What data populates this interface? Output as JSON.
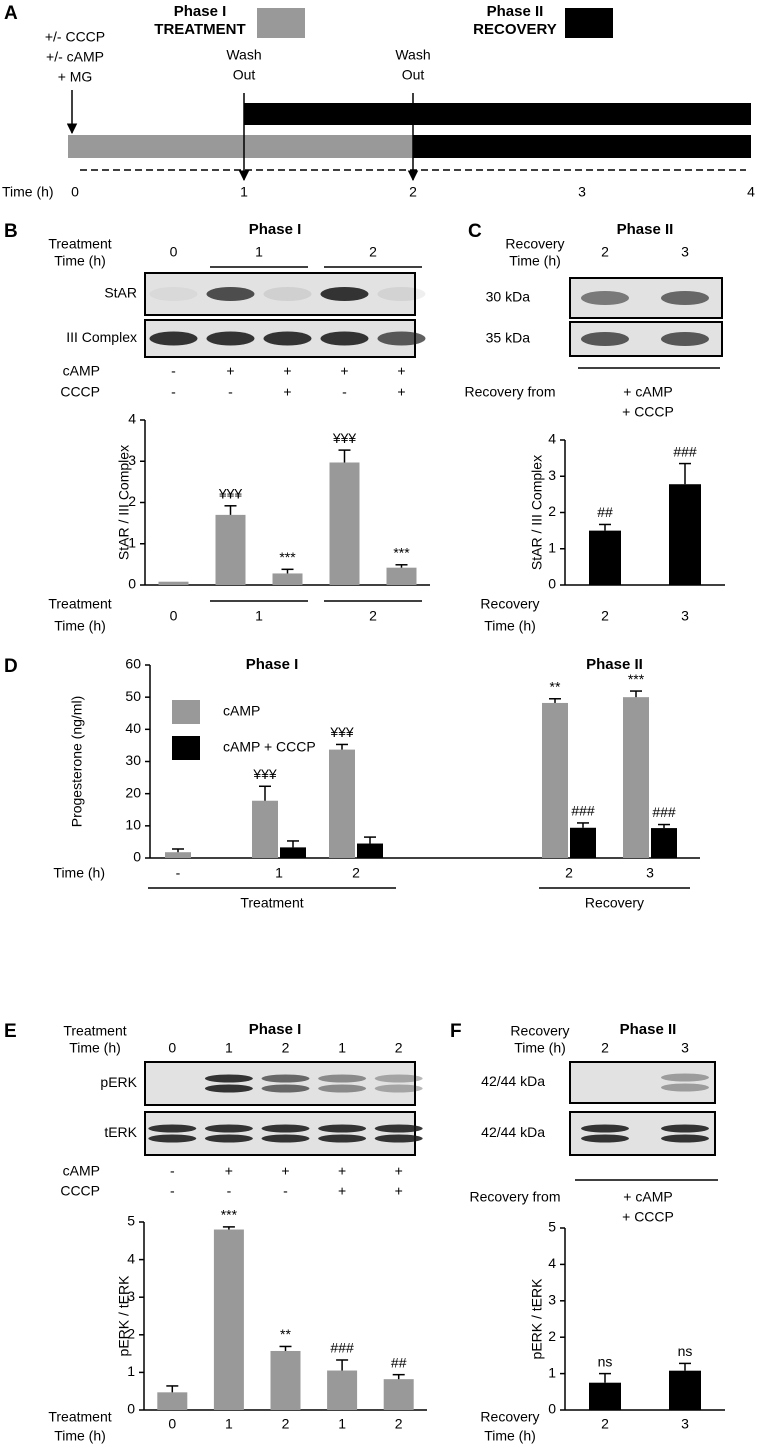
{
  "panel_labels": [
    "A",
    "B",
    "C",
    "D",
    "E",
    "F"
  ],
  "timeline": {
    "legend": [
      {
        "lines": [
          "Phase I",
          "TREATMENT"
        ],
        "color": "#999999"
      },
      {
        "lines": [
          "Phase II",
          "RECOVERY"
        ],
        "color": "#000000"
      }
    ],
    "treatment_lines": [
      "+/- CCCP",
      "+/- cAMP",
      "+ MG"
    ],
    "wash_out": [
      {
        "lines": [
          "Wash",
          "Out"
        ],
        "time": 1
      },
      {
        "lines": [
          "Wash",
          "Out"
        ],
        "time": 2
      }
    ],
    "axis_label": "Time (h)",
    "ticks": [
      0,
      1,
      2,
      3,
      4
    ]
  },
  "blots": [
    {
      "title": "Phase I",
      "header": [
        "Treatment",
        "Time (h)"
      ],
      "lanes": [
        "0",
        "1",
        null,
        "2",
        null
      ],
      "rows": [
        "StAR",
        "III Complex"
      ],
      "conditions": [
        {
          "name": "cAMP",
          "marks": [
            "-",
            "+",
            "+",
            "+",
            "+"
          ]
        },
        {
          "name": "CCCP",
          "marks": [
            "-",
            "-",
            "+",
            "-",
            "+"
          ]
        }
      ]
    },
    {
      "title": "Phase II",
      "header": [
        "Recovery",
        "Time (h)"
      ],
      "lanes": [
        "2",
        "3"
      ],
      "rows": [
        "30 kDa",
        "35 kDa"
      ],
      "recovery_label": "Recovery from",
      "recovery_conditions": [
        "+ cAMP",
        "+ CCCP"
      ]
    },
    {
      "title": "Phase I",
      "header": [
        "Treatment",
        "Time (h)"
      ],
      "lanes": [
        "0",
        "1",
        "2",
        "1",
        "2"
      ],
      "rows": [
        "pERK",
        "tERK"
      ],
      "conditions": [
        {
          "name": "cAMP",
          "marks": [
            "-",
            "+",
            "+",
            "+",
            "+"
          ]
        },
        {
          "name": "CCCP",
          "marks": [
            "-",
            "-",
            "-",
            "+",
            "+"
          ]
        }
      ]
    },
    {
      "title": "Phase II",
      "header": [
        "Recovery",
        "Time (h)"
      ],
      "lanes": [
        "2",
        "3"
      ],
      "rows": [
        "42/44 kDa",
        "42/44 kDa"
      ],
      "recovery_label": "Recovery from",
      "recovery_conditions": [
        "+ cAMP",
        "+ CCCP"
      ]
    }
  ],
  "chart_data": [
    {
      "type": "bar",
      "ylabel": "StAR / III Complex",
      "xlabel": [
        "Treatment",
        "Time (h)"
      ],
      "categories": [
        "0",
        "1",
        null,
        "2",
        null
      ],
      "values": [
        0.08,
        1.7,
        0.28,
        2.97,
        0.42
      ],
      "errors": [
        null,
        0.22,
        0.1,
        0.3,
        0.07
      ],
      "annotations": [
        null,
        "¥¥¥",
        "***",
        "¥¥¥",
        "***"
      ],
      "color": "#999999",
      "ylim": [
        0,
        4
      ],
      "yticks": [
        0,
        1,
        2,
        3,
        4
      ]
    },
    {
      "type": "bar",
      "ylabel": "StAR / III Complex",
      "xlabel": [
        "Recovery",
        "Time (h)"
      ],
      "categories": [
        "2",
        "3"
      ],
      "values": [
        1.5,
        2.78
      ],
      "errors": [
        0.17,
        0.57
      ],
      "annotations": [
        "##",
        "###"
      ],
      "color": "#000000",
      "ylim": [
        0,
        4
      ],
      "yticks": [
        0,
        1,
        2,
        3,
        4
      ]
    },
    {
      "type": "grouped_bar",
      "ylabel": "Progesterone (ng/ml)",
      "xlabel": "Time (h)",
      "category_groups": [
        {
          "phase": "Phase I",
          "name": "Treatment",
          "categories": [
            "-",
            "1",
            "2"
          ]
        },
        {
          "phase": "Phase II",
          "name": "Recovery",
          "categories": [
            "2",
            "3"
          ]
        }
      ],
      "series": [
        {
          "name": "cAMP",
          "color": "#999999",
          "values": [
            1.8,
            17.8,
            33.7,
            48.2,
            50.0
          ],
          "errors": [
            1.0,
            4.5,
            1.6,
            1.3,
            1.9
          ],
          "annotations": [
            null,
            "¥¥¥",
            "¥¥¥",
            "**",
            "***"
          ]
        },
        {
          "name": "cAMP + CCCP",
          "color": "#000000",
          "values": [
            null,
            3.3,
            4.5,
            9.4,
            9.3
          ],
          "errors": [
            null,
            2.0,
            2.0,
            1.5,
            1.1
          ],
          "annotations": [
            null,
            null,
            null,
            "###",
            "###"
          ]
        }
      ],
      "legend": "upper left",
      "ylim": [
        0,
        60
      ],
      "yticks": [
        0,
        10,
        20,
        30,
        40,
        50,
        60
      ]
    },
    {
      "type": "bar",
      "ylabel": "pERK / tERK",
      "xlabel": [
        "Treatment",
        "Time (h)"
      ],
      "categories": [
        "0",
        "1",
        "2",
        "1",
        "2"
      ],
      "values": [
        0.47,
        4.8,
        1.57,
        1.05,
        0.82
      ],
      "errors": [
        0.17,
        0.07,
        0.12,
        0.28,
        0.12
      ],
      "annotations": [
        null,
        "***",
        "**",
        "###",
        "##"
      ],
      "color": "#999999",
      "ylim": [
        0,
        5
      ],
      "yticks": [
        0,
        1,
        2,
        3,
        4,
        5
      ]
    },
    {
      "type": "bar",
      "ylabel": "pERK / tERK",
      "xlabel": [
        "Recovery",
        "Time (h)"
      ],
      "categories": [
        "2",
        "3"
      ],
      "values": [
        0.75,
        1.08
      ],
      "errors": [
        0.25,
        0.2
      ],
      "annotations": [
        "ns",
        "ns"
      ],
      "color": "#000000",
      "ylim": [
        0,
        5
      ],
      "yticks": [
        0,
        1,
        2,
        3,
        4,
        5
      ]
    }
  ]
}
